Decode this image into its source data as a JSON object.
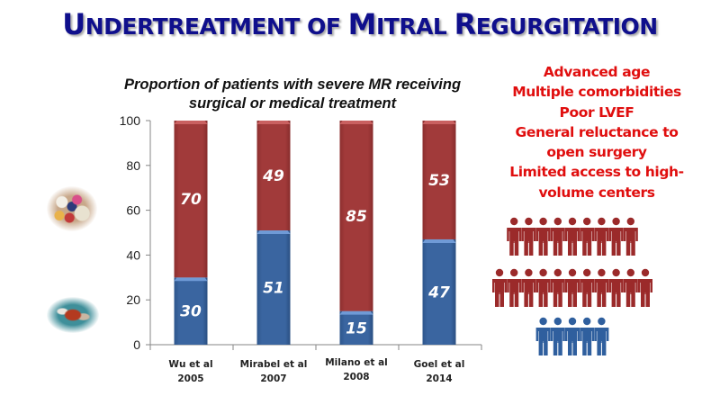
{
  "slide": {
    "title_parts": [
      {
        "first": "U",
        "rest": "NDERTREATMENT OF "
      },
      {
        "first": "M",
        "rest": "ITRAL "
      },
      {
        "first": "R",
        "rest": "EGURGITATION"
      }
    ],
    "title_full": "Undertreatment of Mitral Regurgitation",
    "reasons": [
      "Advanced age",
      "Multiple comorbidities",
      "Poor LVEF",
      "General reluctance to",
      "open surgery",
      "Limited access to high-",
      "volume centers"
    ],
    "people_rows": [
      {
        "count": 9,
        "color": "#9b2a2a"
      },
      {
        "count": 11,
        "color": "#9b2a2a"
      },
      {
        "count": 5,
        "color": "#2f5f9e"
      }
    ],
    "images": {
      "medical": "pills-image",
      "surgical": "surgery-image"
    }
  },
  "chart_data": {
    "type": "bar",
    "stacked": true,
    "title": "Proportion of patients with severe MR receiving surgical or medical treatment",
    "title_lines": [
      "Proportion of patients with severe MR receiving",
      "surgical or medical treatment"
    ],
    "categories": [
      [
        "Wu et al",
        "2005"
      ],
      [
        "Mirabel et al",
        "2007"
      ],
      [
        "Milano  et al",
        "2008"
      ],
      [
        "Goel et al",
        "2014"
      ]
    ],
    "series": [
      {
        "name": "Surgical treatment",
        "color": "#3a65a0",
        "values": [
          30,
          51,
          15,
          47
        ]
      },
      {
        "name": "Medical treatment",
        "color": "#a13a3a",
        "values": [
          70,
          49,
          85,
          53
        ]
      }
    ],
    "yticks": [
      0,
      20,
      40,
      60,
      80,
      100
    ],
    "ylim": [
      0,
      100
    ],
    "xlabel": "",
    "ylabel": "",
    "grid": false,
    "legend": "none (images at left: pills = medical, surgery = surgical)"
  }
}
